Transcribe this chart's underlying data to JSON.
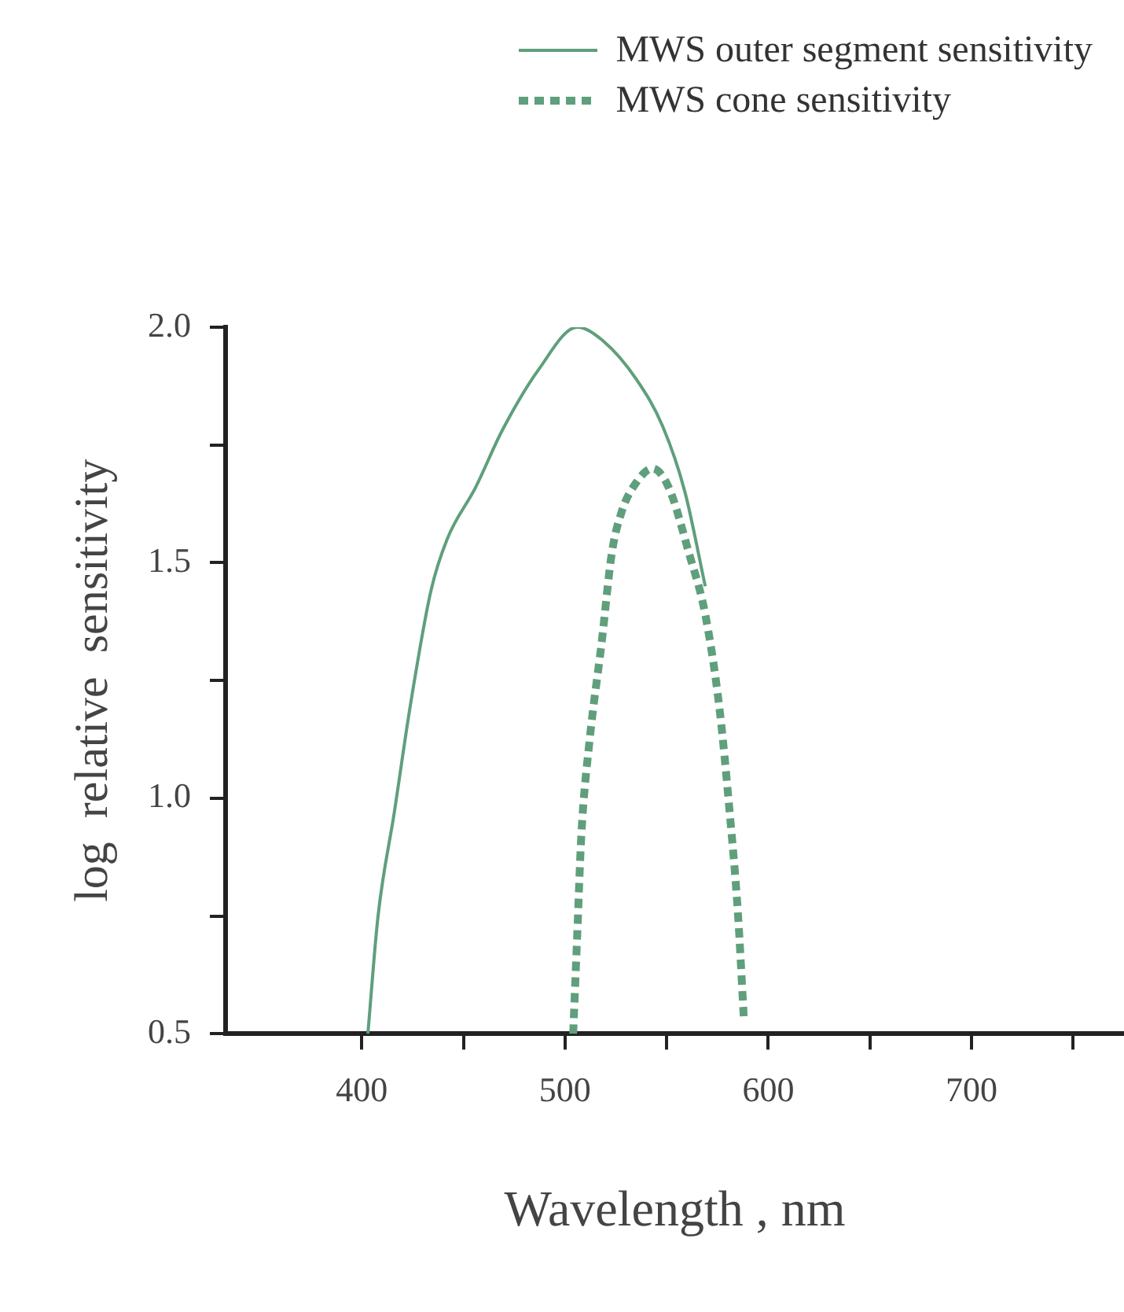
{
  "chart_data": {
    "type": "line",
    "xlabel": "Wavelength , nm",
    "ylabel": "log  relative  sensitivity",
    "xlim": [
      333,
      775
    ],
    "ylim": [
      0.5,
      2.0
    ],
    "xticks": [
      400,
      {
        "value": 450,
        "label": null
      },
      500,
      {
        "value": 550,
        "label": null
      },
      600,
      {
        "value": 650,
        "label": null
      },
      700,
      {
        "value": 750,
        "label": null
      }
    ],
    "yticks": [
      {
        "value": 0.5,
        "label": "0.5"
      },
      {
        "value": 0.75,
        "label": null
      },
      {
        "value": 1.0,
        "label": "1.0"
      },
      {
        "value": 1.25,
        "label": null
      },
      {
        "value": 1.5,
        "label": "1.5"
      },
      {
        "value": 1.75,
        "label": null
      },
      {
        "value": 2.0,
        "label": "2.0"
      }
    ],
    "legend": "top right",
    "marker": "none",
    "series": [
      {
        "name": "MWS outer segment sensitivity",
        "color": "#5f9f7c",
        "line_style": "solid",
        "x": [
          403,
          408,
          416,
          424,
          434,
          442,
          456,
          469,
          487,
          506,
          519,
          535,
          548,
          559,
          569
        ],
        "values": [
          0.5,
          0.75,
          0.97,
          1.2,
          1.44,
          1.55,
          1.66,
          1.78,
          1.91,
          2.0,
          1.97,
          1.89,
          1.79,
          1.65,
          1.45
        ]
      },
      {
        "name": "MWS cone sensitivity",
        "color": "#5f9f7c",
        "line_style": "dotted",
        "x": [
          504,
          506,
          508,
          512,
          518,
          523,
          528,
          535,
          543,
          551,
          561,
          569,
          576,
          581,
          585,
          588
        ],
        "values": [
          0.5,
          0.71,
          0.92,
          1.12,
          1.33,
          1.52,
          1.61,
          1.67,
          1.7,
          1.66,
          1.52,
          1.39,
          1.19,
          0.97,
          0.76,
          0.53
        ]
      }
    ]
  }
}
